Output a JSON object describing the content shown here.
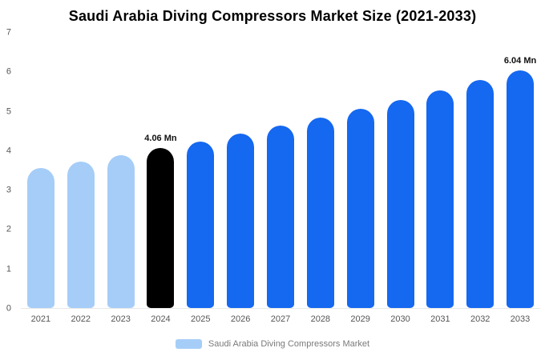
{
  "title": "Saudi Arabia Diving Compressors Market Size (2021-2033)",
  "legend": {
    "label": "Saudi Arabia Diving Compressors Market",
    "swatch_color": "#a5cdf8"
  },
  "colors": {
    "light_blue": "#a5cdf8",
    "black": "#000000",
    "blue": "#1568f0"
  },
  "chart_data": {
    "type": "bar",
    "title": "Saudi Arabia Diving Compressors Market Size (2021-2033)",
    "xlabel": "",
    "ylabel": "",
    "unit": "Mn",
    "ylim": [
      0,
      7
    ],
    "yticks": [
      0,
      1,
      2,
      3,
      4,
      5,
      6,
      7
    ],
    "grid": false,
    "legend_position": "bottom",
    "categories": [
      "2021",
      "2022",
      "2023",
      "2024",
      "2025",
      "2026",
      "2027",
      "2028",
      "2029",
      "2030",
      "2031",
      "2032",
      "2033"
    ],
    "values": [
      3.56,
      3.72,
      3.88,
      4.06,
      4.24,
      4.44,
      4.64,
      4.85,
      5.07,
      5.3,
      5.54,
      5.79,
      6.04
    ],
    "bar_colors": [
      "light_blue",
      "light_blue",
      "light_blue",
      "black",
      "blue",
      "blue",
      "blue",
      "blue",
      "blue",
      "blue",
      "blue",
      "blue",
      "blue"
    ],
    "data_labels": [
      {
        "category": "2024",
        "text": "4.06 Mn"
      },
      {
        "category": "2033",
        "text": "6.04 Mn"
      }
    ]
  }
}
